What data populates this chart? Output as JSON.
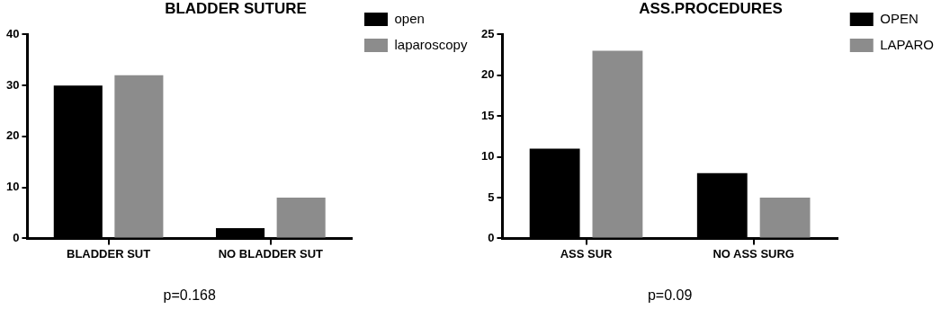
{
  "chart_data": [
    {
      "type": "bar",
      "title": "BLADDER SUTURE",
      "categories": [
        "BLADDER SUT",
        "NO BLADDER SUT"
      ],
      "series": [
        {
          "name": "open",
          "color": "#000000",
          "values": [
            30,
            2
          ]
        },
        {
          "name": "laparoscopy",
          "color": "#8c8c8c",
          "values": [
            32,
            8
          ]
        }
      ],
      "ylim": [
        0,
        40
      ],
      "yticks": [
        0,
        10,
        20,
        30,
        40
      ],
      "grid": false,
      "legend": "top right",
      "annotations": [
        "p=0.168"
      ]
    },
    {
      "type": "bar",
      "title": "ASS.PROCEDURES",
      "categories": [
        "ASS SUR",
        "NO ASS SURG"
      ],
      "series": [
        {
          "name": "OPEN",
          "color": "#000000",
          "values": [
            11,
            8
          ]
        },
        {
          "name": "LAPARO",
          "color": "#8c8c8c",
          "values": [
            23,
            5
          ]
        }
      ],
      "ylim": [
        0,
        25
      ],
      "yticks": [
        0,
        5,
        10,
        15,
        20,
        25
      ],
      "grid": false,
      "legend": "top right",
      "annotations": [
        "p=0.09"
      ]
    }
  ]
}
